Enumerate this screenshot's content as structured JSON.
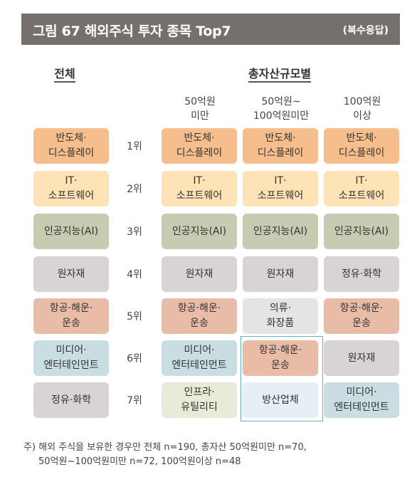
{
  "header": {
    "title": "그림 67  해외주식 투자 종목 Top7",
    "subtitle": "(복수응답)"
  },
  "columns": {
    "overall": "전체",
    "by_assets": "총자산규모별",
    "sub": [
      [
        "50억원",
        "미만"
      ],
      [
        "50억원~",
        "100억원미만"
      ],
      [
        "100억원",
        "이상"
      ]
    ]
  },
  "colors": {
    "반도체": "#f5be8c",
    "IT": "#fde3b5",
    "AI": "#c8cbb1",
    "원자재": "#d8d4d3",
    "정유화학": "#d8d4d3",
    "항공": "#e9bca8",
    "미디어": "#c9dde2",
    "의류": "#e5e3e6",
    "인프라": "#e9ebd8",
    "방산": "#e6eff3",
    "highlight_border": "#5db5c4"
  },
  "ranks": [
    "1위",
    "2위",
    "3위",
    "4위",
    "5위",
    "6위",
    "7위"
  ],
  "overall": [
    {
      "l1": "반도체·",
      "l2": "디스플레이",
      "color": "#f5be8c"
    },
    {
      "l1": "IT·",
      "l2": "소프트웨어",
      "color": "#fde3b5"
    },
    {
      "l1": "인공지능(AI)",
      "l2": "",
      "color": "#c8cbb1"
    },
    {
      "l1": "원자재",
      "l2": "",
      "color": "#d8d4d3"
    },
    {
      "l1": "항공·해운·",
      "l2": "운송",
      "color": "#e9bca8"
    },
    {
      "l1": "미디어·",
      "l2": "엔터테인먼트",
      "color": "#c9dde2"
    },
    {
      "l1": "정유·화학",
      "l2": "",
      "color": "#d8d4d3"
    }
  ],
  "under50": [
    {
      "l1": "반도체·",
      "l2": "디스플레이",
      "color": "#f5be8c"
    },
    {
      "l1": "IT·",
      "l2": "소프트웨어",
      "color": "#fde3b5"
    },
    {
      "l1": "인공지능(AI)",
      "l2": "",
      "color": "#c8cbb1"
    },
    {
      "l1": "원자재",
      "l2": "",
      "color": "#d8d4d3"
    },
    {
      "l1": "항공·해운·",
      "l2": "운송",
      "color": "#e9bca8"
    },
    {
      "l1": "미디어·",
      "l2": "엔터테인먼트",
      "color": "#c9dde2"
    },
    {
      "l1": "인프라·",
      "l2": "유틸리티",
      "color": "#e9ebd8"
    }
  ],
  "mid": [
    {
      "l1": "반도체·",
      "l2": "디스플레이",
      "color": "#f5be8c"
    },
    {
      "l1": "IT·",
      "l2": "소프트웨어",
      "color": "#fde3b5"
    },
    {
      "l1": "인공지능(AI)",
      "l2": "",
      "color": "#c8cbb1"
    },
    {
      "l1": "원자재",
      "l2": "",
      "color": "#d8d4d3"
    },
    {
      "l1": "의류·",
      "l2": "화장품",
      "color": "#e5e3e6"
    },
    {
      "l1": "항공·해운·",
      "l2": "운송",
      "color": "#e9bca8"
    },
    {
      "l1": "방산업체",
      "l2": "",
      "color": "#e6eff3"
    }
  ],
  "over100": [
    {
      "l1": "반도체·",
      "l2": "디스플레이",
      "color": "#f5be8c"
    },
    {
      "l1": "IT·",
      "l2": "소프트웨어",
      "color": "#fde3b5"
    },
    {
      "l1": "인공지능(AI)",
      "l2": "",
      "color": "#c8cbb1"
    },
    {
      "l1": "정유·화학",
      "l2": "",
      "color": "#d8d4d3"
    },
    {
      "l1": "항공·해운·",
      "l2": "운송",
      "color": "#e9bca8"
    },
    {
      "l1": "원자재",
      "l2": "",
      "color": "#d8d4d3"
    },
    {
      "l1": "미디어·",
      "l2": "엔터테인먼트",
      "color": "#c9dde2"
    }
  ],
  "note": {
    "line1": "주) 해외 주식을 보유한 경우만 전체 n=190, 총자산 50억원미만 n=70,",
    "line2": "50억원~100억원미만 n=72, 100억원이상 n=48"
  }
}
